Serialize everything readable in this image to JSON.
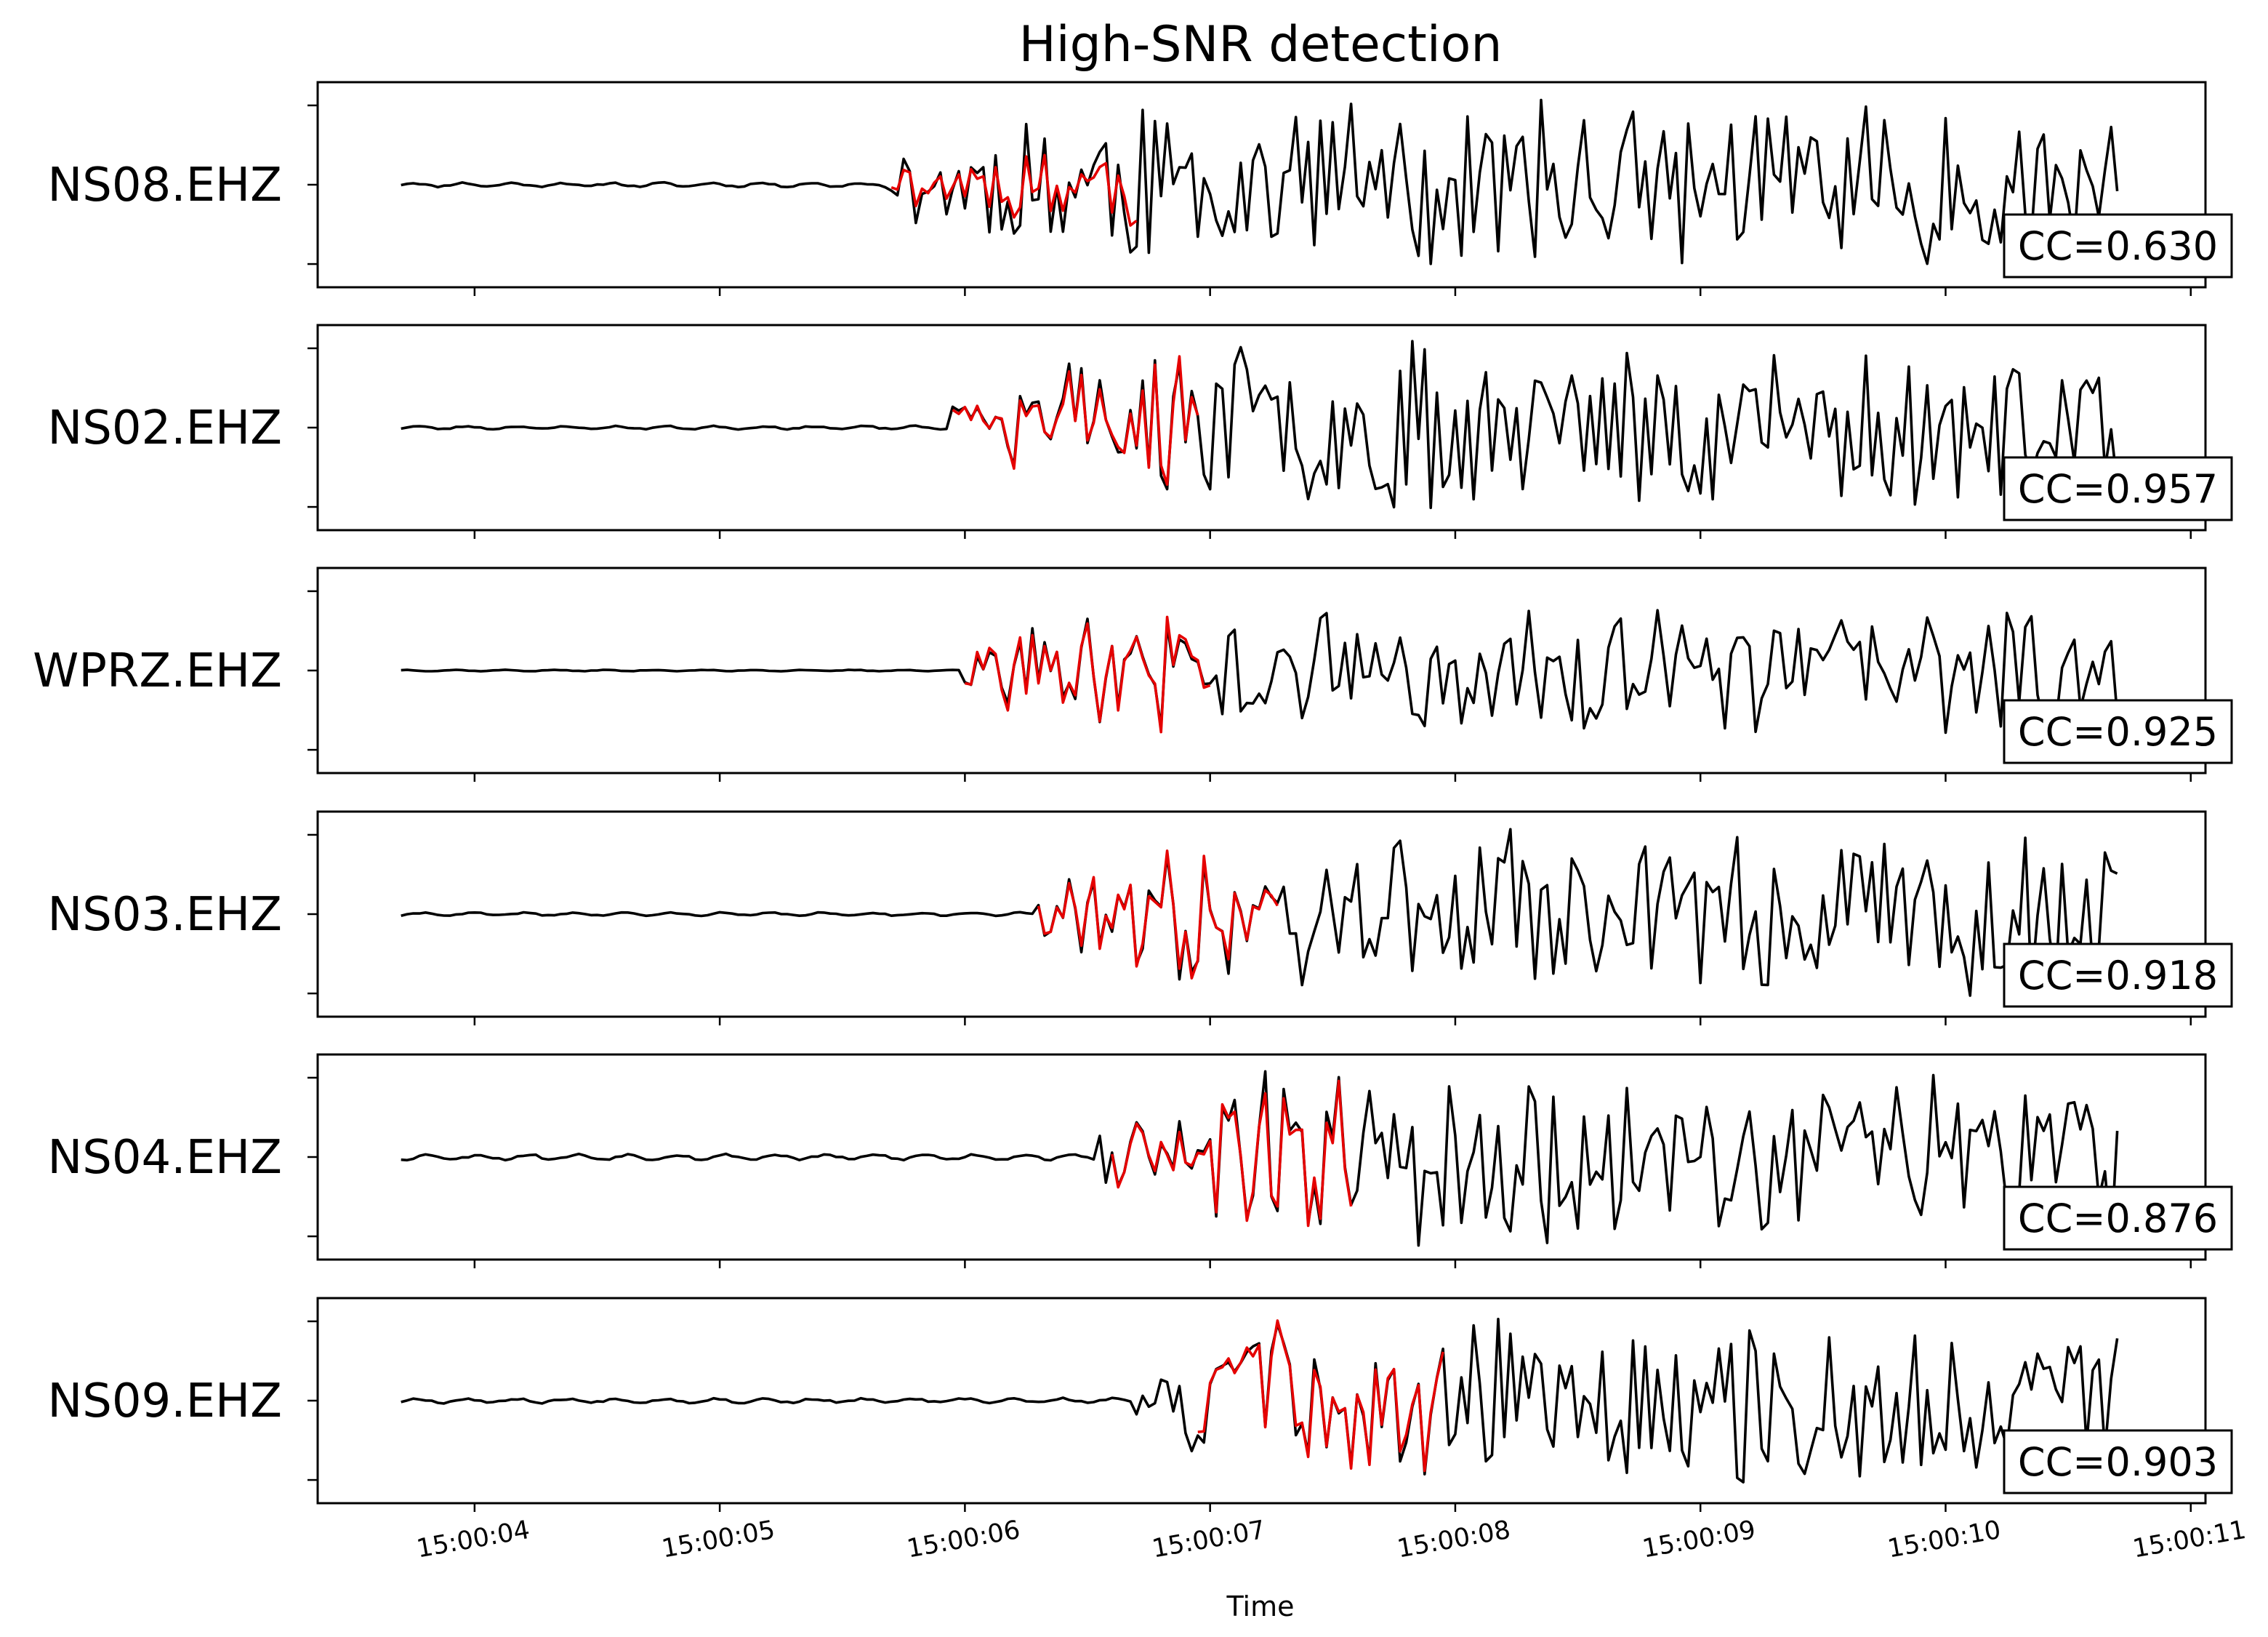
{
  "chart_data": {
    "type": "line",
    "title": "High-SNR detection",
    "xlabel": "Time",
    "ylabel": "",
    "x_tick_labels": [
      "15:00:04",
      "15:00:05",
      "15:00:06",
      "15:00:07",
      "15:00:08",
      "15:00:09",
      "15:00:10",
      "15:00:11"
    ],
    "x_tick_seconds": [
      4,
      5,
      6,
      7,
      8,
      9,
      10,
      11
    ],
    "xlim_seconds": [
      3.36,
      11.06
    ],
    "grid": false,
    "colors": {
      "continuous": "#000000",
      "template": "#e50000"
    },
    "trace_window_seconds": [
      3.7,
      10.7
    ],
    "sample_interval_seconds": 0.025,
    "panels": [
      {
        "station": "NS08.EHZ",
        "cc_text": "CC=0.630",
        "cc": 0.63,
        "onset_s": 5.68,
        "template_start_s": 5.7,
        "template_end_s": 6.7,
        "noise_level": 0.018,
        "template_amplitude": 0.55,
        "signal_amplitude": 0.95,
        "seed": 11
      },
      {
        "station": "NS02.EHZ",
        "cc_text": "CC=0.957",
        "cc": 0.957,
        "onset_s": 5.95,
        "template_start_s": 5.95,
        "template_end_s": 6.95,
        "noise_level": 0.014,
        "template_amplitude": 0.95,
        "signal_amplitude": 0.95,
        "seed": 23
      },
      {
        "station": "WPRZ.EHZ",
        "cc_text": "CC=0.925",
        "cc": 0.925,
        "onset_s": 6.0,
        "template_start_s": 6.0,
        "template_end_s": 7.0,
        "noise_level": 0.006,
        "template_amplitude": 0.8,
        "signal_amplitude": 0.7,
        "seed": 37
      },
      {
        "station": "NS03.EHZ",
        "cc_text": "CC=0.918",
        "cc": 0.918,
        "onset_s": 6.3,
        "template_start_s": 6.3,
        "template_end_s": 7.3,
        "noise_level": 0.014,
        "template_amplitude": 0.95,
        "signal_amplitude": 0.95,
        "seed": 41
      },
      {
        "station": "NS04.EHZ",
        "cc_text": "CC=0.876",
        "cc": 0.876,
        "onset_s": 6.55,
        "template_start_s": 6.6,
        "template_end_s": 7.6,
        "noise_level": 0.024,
        "template_amplitude": 0.9,
        "signal_amplitude": 0.95,
        "seed": 53
      },
      {
        "station": "NS09.EHZ",
        "cc_text": "CC=0.903",
        "cc": 0.903,
        "onset_s": 6.7,
        "template_start_s": 6.95,
        "template_end_s": 7.95,
        "noise_level": 0.02,
        "template_amplitude": 0.9,
        "signal_amplitude": 0.95,
        "seed": 67
      }
    ]
  }
}
